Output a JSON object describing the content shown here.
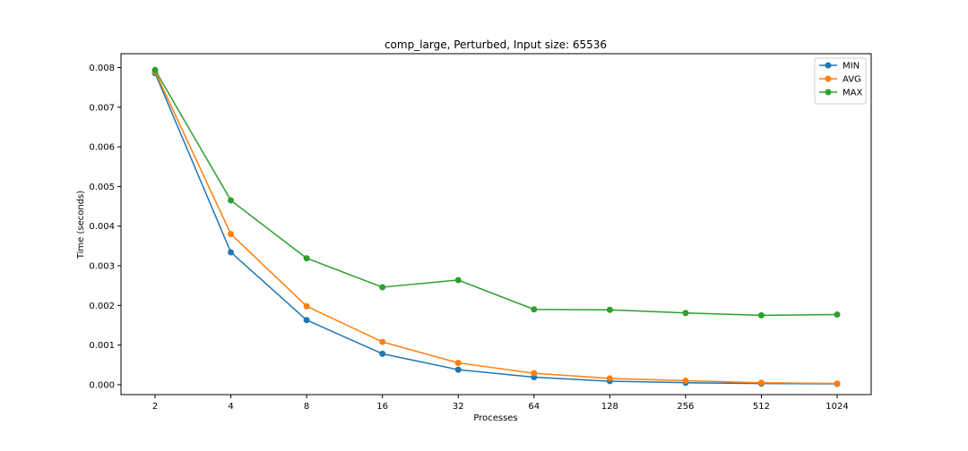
{
  "chart_data": {
    "type": "line",
    "title": "comp_large, Perturbed, Input size: 65536",
    "xlabel": "Processes",
    "ylabel": "Time (seconds)",
    "categories": [
      "2",
      "4",
      "8",
      "16",
      "32",
      "64",
      "128",
      "256",
      "512",
      "1024"
    ],
    "y_ticks": [
      "0.000",
      "0.001",
      "0.002",
      "0.003",
      "0.004",
      "0.005",
      "0.006",
      "0.007",
      "0.008"
    ],
    "ylim": [
      -0.00025,
      0.00835
    ],
    "grid": false,
    "legend_position": "top-right",
    "series": [
      {
        "name": "MIN",
        "color": "#1f77b4",
        "values": [
          0.00786,
          0.00334,
          0.00163,
          0.00078,
          0.00038,
          0.00019,
          9e-05,
          5e-05,
          3e-05,
          2e-05
        ]
      },
      {
        "name": "AVG",
        "color": "#ff7f0e",
        "values": [
          0.0079,
          0.0038,
          0.00198,
          0.00108,
          0.00055,
          0.00029,
          0.00016,
          0.0001,
          5e-05,
          3e-05
        ]
      },
      {
        "name": "MAX",
        "color": "#2ca02c",
        "values": [
          0.00794,
          0.00465,
          0.00319,
          0.00246,
          0.00264,
          0.0019,
          0.00189,
          0.00181,
          0.00175,
          0.00177
        ]
      }
    ]
  }
}
